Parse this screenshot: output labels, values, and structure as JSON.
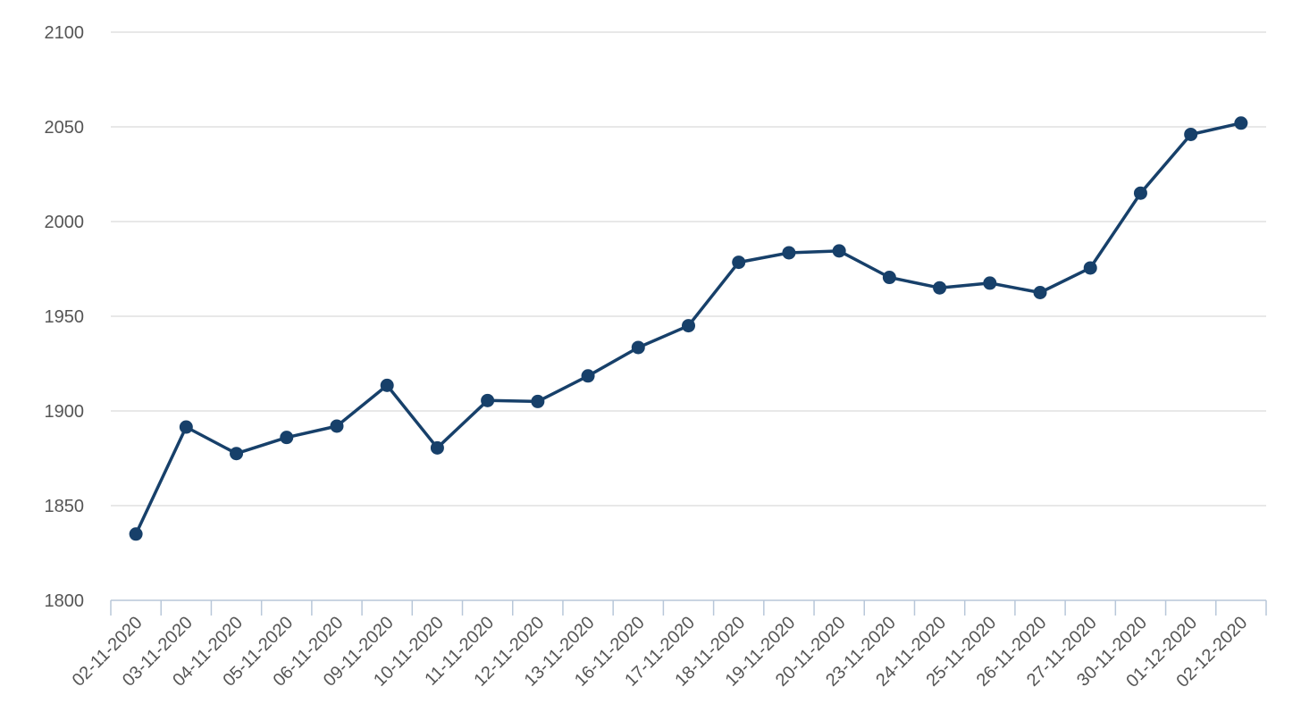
{
  "chart_data": {
    "type": "line",
    "title": "",
    "xlabel": "",
    "ylabel": "",
    "ylim": [
      1800,
      2100
    ],
    "yticks": [
      1800,
      1850,
      1900,
      1950,
      2000,
      2050,
      2100
    ],
    "grid": true,
    "legend": "none",
    "colors": {
      "series": "#17406a",
      "grid": "#d9d9d9",
      "axis": "#b8c7d9",
      "text": "#555555"
    },
    "x": [
      "02-11-2020",
      "03-11-2020",
      "04-11-2020",
      "05-11-2020",
      "06-11-2020",
      "09-11-2020",
      "10-11-2020",
      "11-11-2020",
      "12-11-2020",
      "13-11-2020",
      "16-11-2020",
      "17-11-2020",
      "18-11-2020",
      "19-11-2020",
      "20-11-2020",
      "23-11-2020",
      "24-11-2020",
      "25-11-2020",
      "26-11-2020",
      "27-11-2020",
      "30-11-2020",
      "01-12-2020",
      "02-12-2020"
    ],
    "series": [
      {
        "values": [
          1835,
          1891.5,
          1877.5,
          1886,
          1892,
          1913.5,
          1880.5,
          1905.5,
          1905,
          1918.5,
          1933.5,
          1945,
          1978.5,
          1983.5,
          1984.5,
          1970.5,
          1965,
          1967.5,
          1962.5,
          1975.5,
          2015,
          2046,
          2052
        ]
      }
    ]
  }
}
